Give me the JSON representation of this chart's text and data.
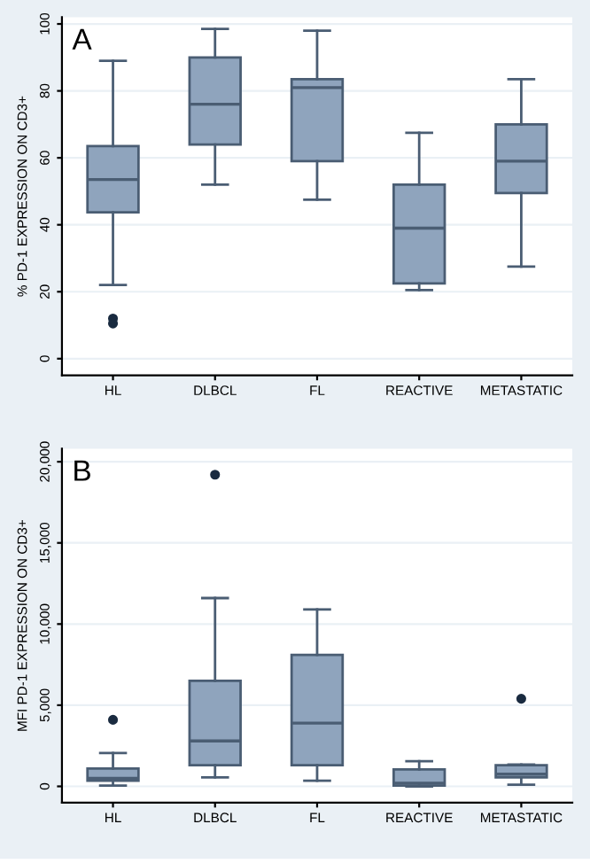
{
  "chart_data": [
    {
      "type": "box",
      "ylabel": "% PD-1 EXPRESSION ON CD3+",
      "annotations": [
        "A"
      ],
      "categories": [
        "HL",
        "DLBCL",
        "FL",
        "REACTIVE",
        "METASTATIC"
      ],
      "color": "#8fa4bd",
      "ylim": [
        -5,
        102
      ],
      "yticks": [
        0,
        20,
        40,
        60,
        80,
        100
      ],
      "grid": "y",
      "boxes": [
        {
          "low": 22,
          "q1": 43.7,
          "median": 53.5,
          "q3": 63.5,
          "high": 89,
          "outliers": [
            10.5,
            12
          ]
        },
        {
          "low": 52,
          "q1": 64,
          "median": 76,
          "q3": 90,
          "high": 98.5
        },
        {
          "low": 47.5,
          "q1": 59,
          "median": 81,
          "q3": 83.5,
          "high": 98
        },
        {
          "low": 20.5,
          "q1": 22.5,
          "median": 39,
          "q3": 52,
          "high": 67.5
        },
        {
          "low": 27.5,
          "q1": 49.5,
          "median": 59,
          "q3": 70,
          "high": 83.5
        }
      ]
    },
    {
      "type": "box",
      "ylabel": "MFI PD-1 EXPRESSION ON CD3+",
      "annotations": [
        "B"
      ],
      "categories": [
        "HL",
        "DLBCL",
        "FL",
        "REACTIVE",
        "METASTATIC"
      ],
      "color": "#8fa4bd",
      "ylim": [
        -1000,
        20800
      ],
      "yticks": [
        {
          "value": 0,
          "label": "0"
        },
        {
          "value": 5000,
          "label": "5,000"
        },
        {
          "value": 10000,
          "label": "10,000"
        },
        {
          "value": 15000,
          "label": "15,000"
        },
        {
          "value": 20000,
          "label": "20,000"
        }
      ],
      "grid": "y",
      "boxes": [
        {
          "low": 50,
          "q1": 350,
          "median": 500,
          "q3": 1100,
          "high": 2050,
          "outliers": [
            4100
          ]
        },
        {
          "low": 550,
          "q1": 1300,
          "median": 2800,
          "q3": 6500,
          "high": 11600,
          "outliers": [
            19200
          ]
        },
        {
          "low": 350,
          "q1": 1300,
          "median": 3900,
          "q3": 8100,
          "high": 10900
        },
        {
          "low": 0,
          "q1": 50,
          "median": 200,
          "q3": 1050,
          "high": 1550
        },
        {
          "low": 100,
          "q1": 550,
          "median": 750,
          "q3": 1300,
          "high": 1350,
          "outliers": [
            5400
          ]
        }
      ]
    }
  ]
}
